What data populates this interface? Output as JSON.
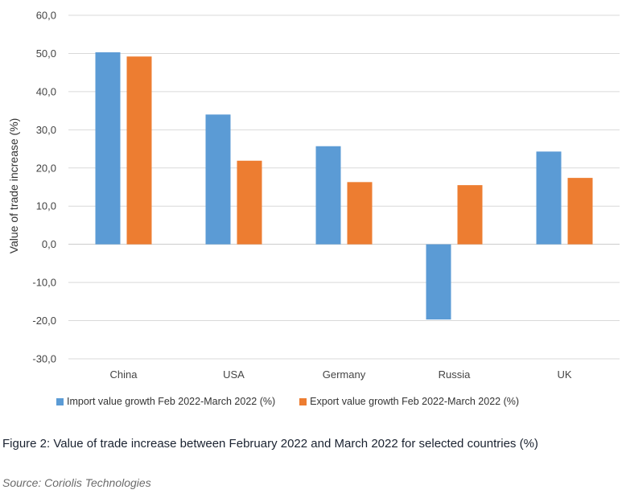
{
  "chart_data": {
    "type": "bar",
    "title": "",
    "xlabel": "",
    "ylabel": "Value of trade increase (%)",
    "ylim": [
      -30,
      60
    ],
    "yticks": [
      -30,
      -20,
      -10,
      0,
      10,
      20,
      30,
      40,
      50,
      60
    ],
    "ytick_labels": [
      "-30,0",
      "-20,0",
      "-10,0",
      "0,0",
      "10,0",
      "20,0",
      "30,0",
      "40,0",
      "50,0",
      "60,0"
    ],
    "grid": true,
    "legend_position": "bottom",
    "categories": [
      "China",
      "USA",
      "Germany",
      "Russia",
      "UK"
    ],
    "series": [
      {
        "name": "Import value growth Feb 2022-March 2022 (%)",
        "color": "#5b9bd5",
        "values": [
          50.3,
          34.0,
          25.7,
          -19.7,
          24.3
        ]
      },
      {
        "name": "Export value growth Feb 2022-March 2022 (%)",
        "color": "#ed7d31",
        "values": [
          49.2,
          21.9,
          16.3,
          15.5,
          17.4
        ]
      }
    ]
  },
  "caption": "Figure 2: Value of trade increase between February 2022 and March 2022 for selected countries (%)",
  "source": "Source: Coriolis Technologies"
}
